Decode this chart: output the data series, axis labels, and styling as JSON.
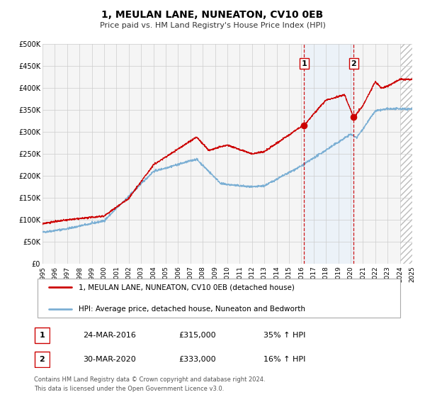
{
  "title": "1, MEULAN LANE, NUNEATON, CV10 0EB",
  "subtitle": "Price paid vs. HM Land Registry's House Price Index (HPI)",
  "legend_line1": "1, MEULAN LANE, NUNEATON, CV10 0EB (detached house)",
  "legend_line2": "HPI: Average price, detached house, Nuneaton and Bedworth",
  "annotation1_date": "24-MAR-2016",
  "annotation1_price": "£315,000",
  "annotation1_hpi": "35% ↑ HPI",
  "annotation1_year": 2016.23,
  "annotation1_value": 315000,
  "annotation2_date": "30-MAR-2020",
  "annotation2_price": "£333,000",
  "annotation2_hpi": "16% ↑ HPI",
  "annotation2_year": 2020.25,
  "annotation2_value": 333000,
  "price_color": "#cc0000",
  "hpi_color": "#7bafd4",
  "marker_color": "#cc0000",
  "vline_color": "#cc0000",
  "shade_color": "#ddeeff",
  "grid_color": "#cccccc",
  "plot_bg_color": "#f5f5f5",
  "ylim": [
    0,
    500000
  ],
  "xlim_start": 1995,
  "xlim_end": 2025,
  "ytick_values": [
    0,
    50000,
    100000,
    150000,
    200000,
    250000,
    300000,
    350000,
    400000,
    450000,
    500000
  ],
  "ytick_labels": [
    "£0",
    "£50K",
    "£100K",
    "£150K",
    "£200K",
    "£250K",
    "£300K",
    "£350K",
    "£400K",
    "£450K",
    "£500K"
  ],
  "xtick_years": [
    1995,
    1996,
    1997,
    1998,
    1999,
    2000,
    2001,
    2002,
    2003,
    2004,
    2005,
    2006,
    2007,
    2008,
    2009,
    2010,
    2011,
    2012,
    2013,
    2014,
    2015,
    2016,
    2017,
    2018,
    2019,
    2020,
    2021,
    2022,
    2023,
    2024,
    2025
  ],
  "footer_line1": "Contains HM Land Registry data © Crown copyright and database right 2024.",
  "footer_line2": "This data is licensed under the Open Government Licence v3.0."
}
